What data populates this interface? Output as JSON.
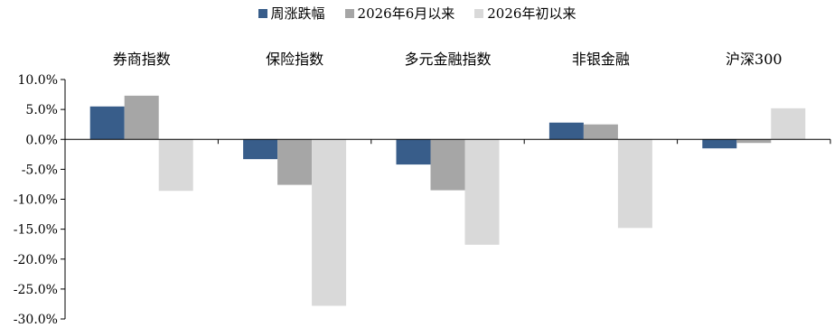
{
  "chart_data": {
    "type": "bar",
    "categories": [
      "券商指数",
      "保险指数",
      "多元金融指数",
      "非银金融",
      "沪深300"
    ],
    "series": [
      {
        "name": "周涨跌幅",
        "color": "#385D8A",
        "values": [
          5.5,
          -3.3,
          -4.2,
          2.8,
          -1.5
        ]
      },
      {
        "name": "2026年6月以来",
        "color": "#A6A6A6",
        "values": [
          7.3,
          -7.6,
          -8.5,
          2.5,
          -0.6
        ]
      },
      {
        "name": "2026年初以来",
        "color": "#D9D9D9",
        "values": [
          -8.6,
          -27.8,
          -17.6,
          -14.8,
          5.2
        ]
      }
    ],
    "ylim": [
      -30,
      10
    ],
    "yticks": [
      "10.0%",
      "5.0%",
      "0.0%",
      "-5.0%",
      "-10.0%",
      "-15.0%",
      "-20.0%",
      "-25.0%",
      "-30.0%"
    ],
    "ytick_values": [
      10,
      5,
      0,
      -5,
      -10,
      -15,
      -20,
      -25,
      -30
    ],
    "legend_position": "top-center",
    "grid": false
  }
}
